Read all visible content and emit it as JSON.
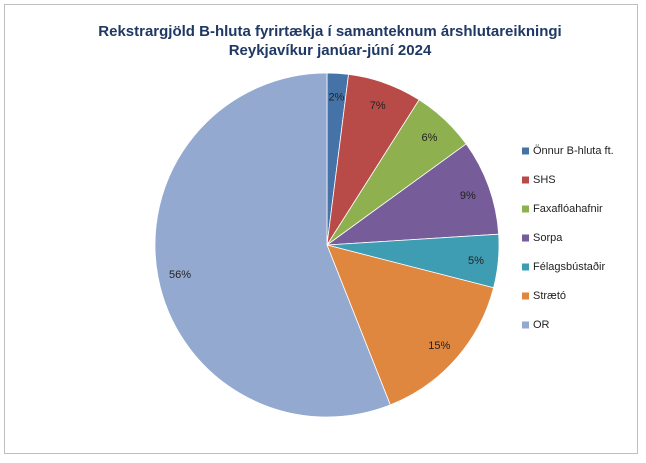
{
  "chart_data": {
    "type": "pie",
    "title": "Rekstrargjöld B-hluta fyrirtækja í samanteknum árshlutareikningi Reykjavíkur janúar-júní 2024",
    "categories": [
      "Önnur B-hluta ft.",
      "SHS",
      "Faxaflóahafnir",
      "Sorpa",
      "Félagsbústaðir",
      "Strætó",
      "OR"
    ],
    "values": [
      2,
      7,
      6,
      9,
      5,
      15,
      56
    ],
    "value_labels": [
      "2%",
      "7%",
      "6%",
      "9%",
      "5%",
      "15%",
      "56%"
    ],
    "colors": [
      "#4573a7",
      "#b84b48",
      "#8fb04f",
      "#765c98",
      "#3f9db3",
      "#e0873f",
      "#94a9d0"
    ],
    "legend": "right"
  }
}
